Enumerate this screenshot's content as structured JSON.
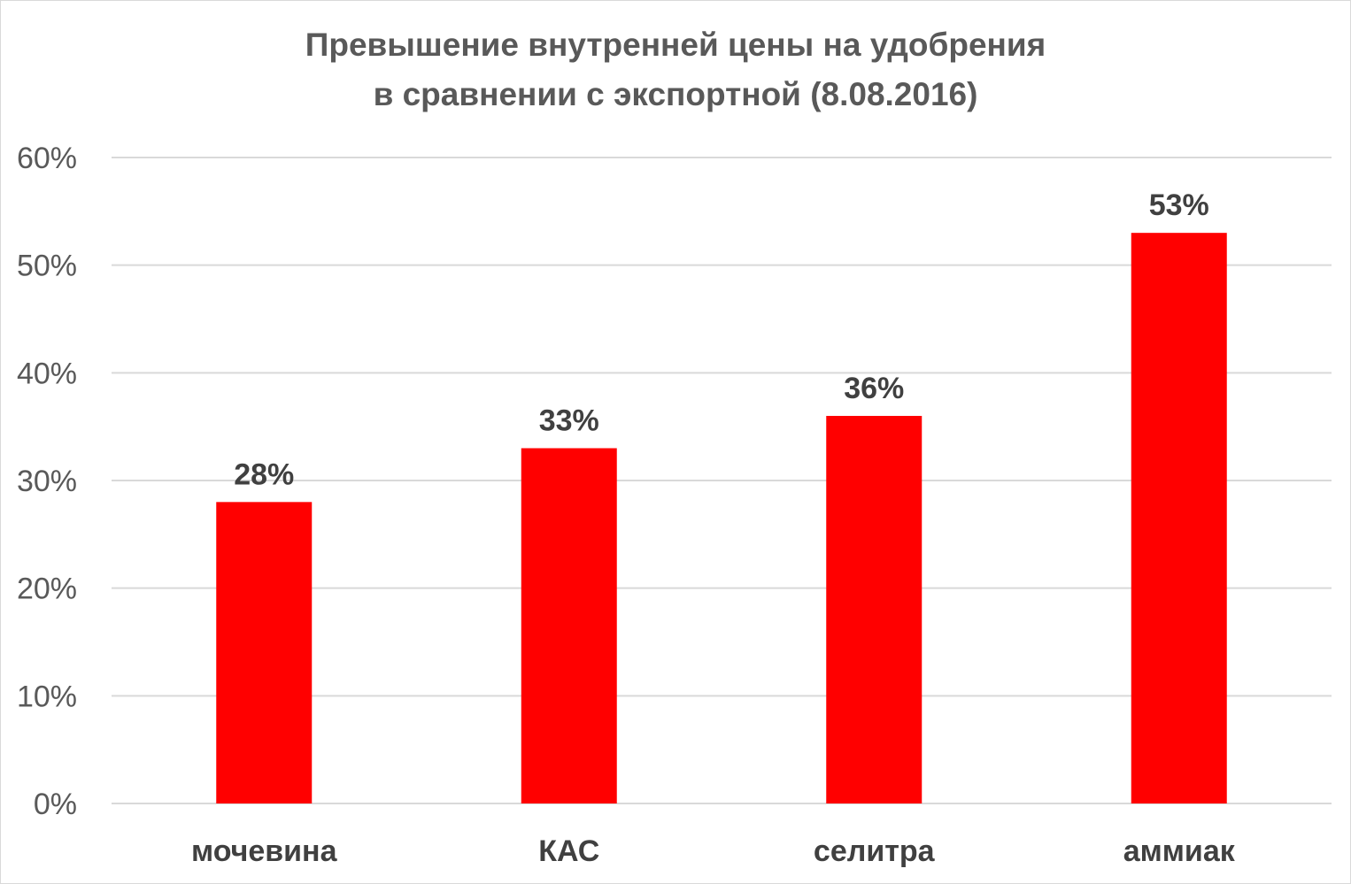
{
  "chart_data": {
    "type": "bar",
    "title_lines": [
      "Превышение внутренней цены на удобрения",
      "в сравнении с экспортной (8.08.2016)"
    ],
    "categories": [
      "мочевина",
      "КАС",
      "селитра",
      "аммиак"
    ],
    "values": [
      0.28,
      0.33,
      0.36,
      0.53
    ],
    "data_labels": [
      "28%",
      "33%",
      "36%",
      "53%"
    ],
    "y_ticks": [
      0,
      0.1,
      0.2,
      0.3,
      0.4,
      0.5,
      0.6
    ],
    "y_tick_labels": [
      "0%",
      "10%",
      "20%",
      "30%",
      "40%",
      "50%",
      "60%"
    ],
    "ylim": [
      0,
      0.6
    ],
    "grid": true,
    "legend": "none",
    "bar_color": "#ff0000",
    "grid_color": "#d9d9d9",
    "text_color": "#595959"
  }
}
